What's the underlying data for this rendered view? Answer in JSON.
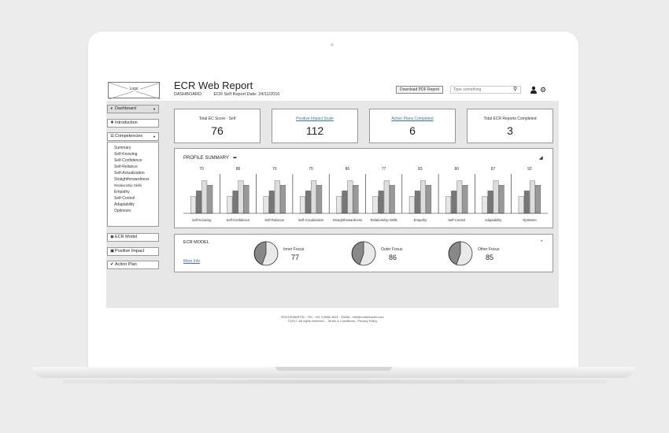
{
  "header": {
    "logo_text": "Logo",
    "title": "ECR Web Report",
    "dashboard_label": "DASHBOARD:",
    "report_date": "ECR Self Report Date: 24/11/2016",
    "pdf_button": "Download PDF Report",
    "search_placeholder": "Type something",
    "icons": [
      "search-icon",
      "user-icon",
      "gear-icon"
    ]
  },
  "sidebar": {
    "dashboard": "Dashboard",
    "introduction": "Introduction",
    "competencies": "Competencies",
    "competency_items": [
      "Summary",
      "Self-Knowing",
      "Self-Confidence",
      "Self-Reliance",
      "Self-Actualization",
      "Straightforwardness",
      "Relationship Skills",
      "Empathy",
      "Self-Control",
      "Adaptability",
      "Optimism"
    ],
    "ecr_model": "ECR Model",
    "positive_impact": "Positive Impact",
    "action_plan": "Action Plan"
  },
  "kpis": [
    {
      "label": "Total EC Score - Self",
      "value": "76",
      "link": false
    },
    {
      "label": "Positive Impact Scale",
      "value": "112",
      "link": true
    },
    {
      "label": "Action Plans Completed",
      "value": "6",
      "link": true
    },
    {
      "label": "Total ECR Reports Completed",
      "value": "3",
      "link": false
    }
  ],
  "profile": {
    "title": "PROFILE SUMMARY"
  },
  "chart_data": {
    "type": "bar",
    "categories": [
      "Self-Knowing",
      "Self-Confidence",
      "Self-Reliance",
      "Self-Actualization",
      "Straightforwardness",
      "Relationship Skills",
      "Empathy",
      "Self-Control",
      "Adaptability",
      "Optimism"
    ],
    "scores": [
      "70",
      "88",
      "70",
      "75",
      "86",
      "77",
      "83",
      "80",
      "87",
      "92"
    ],
    "series": [
      {
        "values": [
          30,
          30,
          30,
          30,
          30,
          30,
          30,
          30,
          30,
          30
        ],
        "color": "#e6e6e6"
      },
      {
        "values": [
          40,
          40,
          40,
          40,
          40,
          40,
          40,
          40,
          40,
          40
        ],
        "color": "#777777"
      },
      {
        "values": [
          58,
          58,
          58,
          58,
          58,
          58,
          58,
          58,
          58,
          58
        ],
        "color": "#dddddd"
      },
      {
        "values": [
          50,
          50,
          50,
          50,
          50,
          50,
          50,
          50,
          50,
          50
        ],
        "color": "#999999"
      }
    ],
    "ylim": [
      0,
      70
    ],
    "grid": false
  },
  "ecr_model": {
    "title": "ECR MODEL",
    "more_info": "More Info",
    "focus": [
      {
        "label": "Inner Focus",
        "value": "77"
      },
      {
        "label": "Outer Focus",
        "value": "86"
      },
      {
        "label": "Other Focus",
        "value": "85"
      }
    ]
  },
  "footer": {
    "line1": "ROCKEMARTIN - TEL: +61 3 9886 4821 - EMAIL: info@rockemartin.com",
    "line2": "©2017. All rights reserved. - Terms & Conditions - Privacy Policy"
  }
}
